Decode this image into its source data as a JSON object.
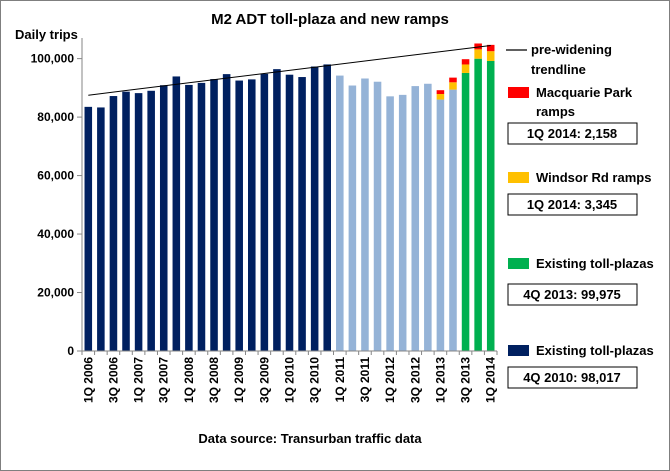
{
  "chart_data": {
    "type": "bar",
    "title": "M2 ADT toll-plaza and new ramps",
    "ylabel": "Daily trips",
    "xlabel": "",
    "source": "Data source: Transurban traffic data",
    "ylim": [
      0,
      105000
    ],
    "yticks": [
      "0",
      "20,000",
      "40,000",
      "60,000",
      "80,000",
      "100,000"
    ],
    "ytick_values": [
      0,
      20000,
      40000,
      60000,
      80000,
      100000
    ],
    "categories": [
      "1Q 2006",
      "2Q 2006",
      "3Q 2006",
      "4Q 2006",
      "1Q 2007",
      "2Q 2007",
      "3Q 2007",
      "4Q 2007",
      "1Q 2008",
      "2Q 2008",
      "3Q 2008",
      "4Q 2008",
      "1Q 2009",
      "2Q 2009",
      "3Q 2009",
      "4Q 2009",
      "1Q 2010",
      "2Q 2010",
      "3Q 2010",
      "4Q 2010",
      "1Q 2011",
      "2Q 2011",
      "3Q 2011",
      "4Q 2011",
      "1Q 2012",
      "2Q 2012",
      "3Q 2012",
      "4Q 2012",
      "1Q 2013",
      "2Q 2013",
      "3Q 2013",
      "4Q 2013",
      "1Q 2014"
    ],
    "x_tick_labels": [
      "1Q 2006",
      "",
      "3Q 2006",
      "",
      "1Q 2007",
      "",
      "3Q 2007",
      "",
      "1Q 2008",
      "",
      "3Q 2008",
      "",
      "1Q 2009",
      "",
      "3Q 2009",
      "",
      "1Q 2010",
      "",
      "3Q 2010",
      "",
      "1Q 2011",
      "",
      "3Q 2011",
      "",
      "1Q 2012",
      "",
      "3Q 2012",
      "",
      "1Q 2013",
      "",
      "3Q 2013",
      "",
      "1Q 2014"
    ],
    "series": [
      {
        "name": "Existing toll-plazas",
        "color": "#002060",
        "values": [
          83500,
          83300,
          87200,
          88700,
          88200,
          89000,
          90900,
          93900,
          91000,
          91700,
          93000,
          94700,
          92500,
          92900,
          94800,
          96400,
          94500,
          93700,
          97300,
          98017,
          null,
          null,
          null,
          null,
          null,
          null,
          null,
          null,
          null,
          null,
          null,
          null,
          null
        ]
      },
      {
        "name": "",
        "color": "#95b3d7",
        "values": [
          null,
          null,
          null,
          null,
          null,
          null,
          null,
          null,
          null,
          null,
          null,
          null,
          null,
          null,
          null,
          null,
          null,
          null,
          null,
          null,
          94200,
          90800,
          93200,
          92100,
          87100,
          87600,
          90600,
          91400,
          86000,
          89400,
          null,
          null,
          null
        ]
      },
      {
        "name": "Existing toll-plazas",
        "color": "#00b050",
        "values": [
          null,
          null,
          null,
          null,
          null,
          null,
          null,
          null,
          null,
          null,
          null,
          null,
          null,
          null,
          null,
          null,
          null,
          null,
          null,
          null,
          null,
          null,
          null,
          null,
          null,
          null,
          null,
          null,
          null,
          null,
          95100,
          99975,
          99200
        ]
      },
      {
        "name": "Windsor Rd ramps",
        "color": "#ffc000",
        "values": [
          0,
          0,
          0,
          0,
          0,
          0,
          0,
          0,
          0,
          0,
          0,
          0,
          0,
          0,
          0,
          0,
          0,
          0,
          0,
          0,
          0,
          0,
          0,
          0,
          0,
          0,
          0,
          0,
          1900,
          2500,
          2900,
          3200,
          3345
        ]
      },
      {
        "name": "Macquarie Park ramps",
        "color": "#ff0000",
        "values": [
          0,
          0,
          0,
          0,
          0,
          0,
          0,
          0,
          0,
          0,
          0,
          0,
          0,
          0,
          0,
          0,
          0,
          0,
          0,
          0,
          0,
          0,
          0,
          0,
          0,
          0,
          0,
          0,
          1300,
          1600,
          1800,
          2000,
          2158
        ]
      }
    ],
    "trendline": {
      "name": "pre-widening trendline",
      "color": "#000000",
      "values": [
        87500,
        104500
      ]
    },
    "legend": [
      {
        "label": "pre-widening trendline",
        "color": "#000000",
        "kind": "line",
        "note": ""
      },
      {
        "label": "Macquarie Park ramps",
        "color": "#ff0000",
        "kind": "box",
        "note": "1Q 2014: 2,158"
      },
      {
        "label": "Windsor Rd ramps",
        "color": "#ffc000",
        "kind": "box",
        "note": "1Q 2014: 3,345"
      },
      {
        "label": "Existing toll-plazas",
        "color": "#00b050",
        "kind": "box",
        "note": "4Q 2013: 99,975"
      },
      {
        "label": "Existing toll-plazas",
        "color": "#002060",
        "kind": "box",
        "note": "4Q 2010: 98,017"
      }
    ],
    "grid": false,
    "legend_position": "right"
  }
}
